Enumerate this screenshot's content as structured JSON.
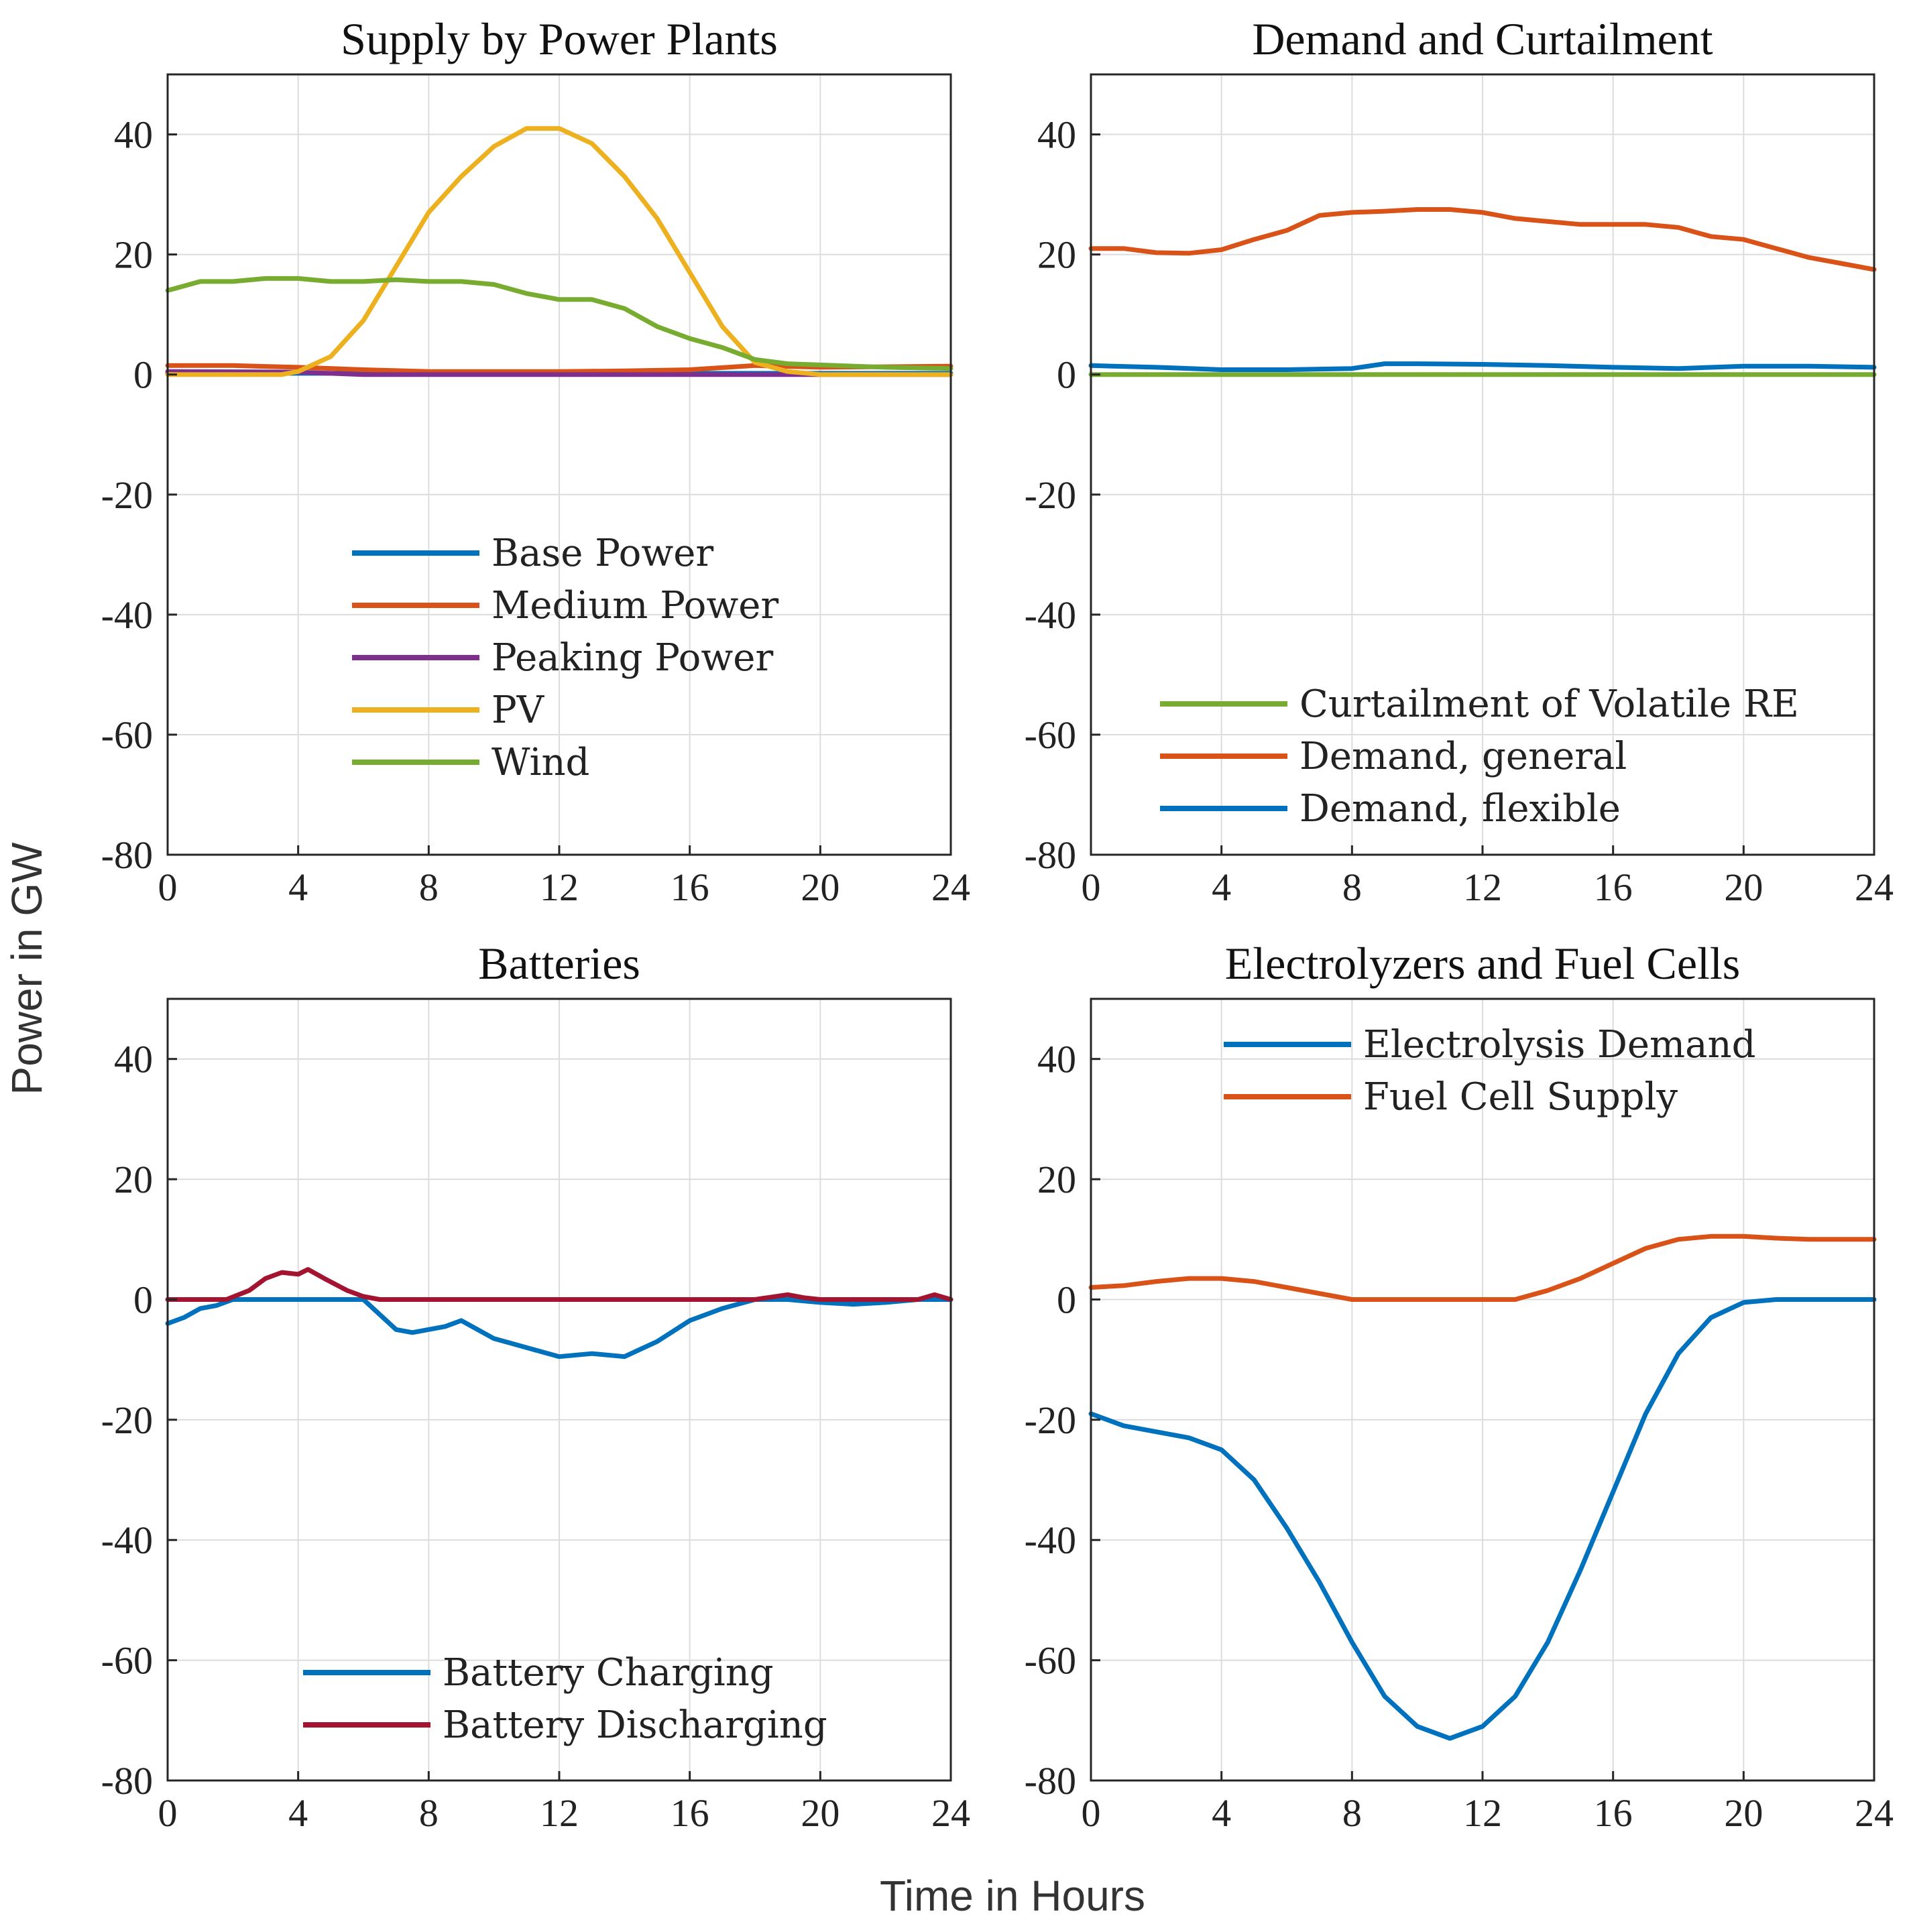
{
  "figure": {
    "ylabel": "Power in GW",
    "xlabel": "Time in Hours"
  },
  "colors": {
    "blue": "#0072BD",
    "orange": "#D95319",
    "purple": "#7E2F8E",
    "yellow": "#EDB120",
    "green": "#77AC30",
    "darkred": "#A2142F"
  },
  "chart_data": [
    {
      "type": "line",
      "title": "Supply by Power Plants",
      "xlim": [
        0,
        24
      ],
      "ylim": [
        -80,
        50
      ],
      "xticks": [
        0,
        4,
        8,
        12,
        16,
        20,
        24
      ],
      "yticks": [
        -80,
        -60,
        -40,
        -20,
        0,
        20,
        40
      ],
      "grid": true,
      "legend_location": "center",
      "series": [
        {
          "name": "Base Power",
          "color": "#0072BD",
          "x": [
            0,
            24
          ],
          "y": [
            0.2,
            0.2
          ]
        },
        {
          "name": "Medium Power",
          "color": "#D95319",
          "x": [
            0,
            2,
            4,
            6,
            8,
            10,
            12,
            14,
            16,
            18,
            20,
            22,
            24
          ],
          "y": [
            1.5,
            1.5,
            1.2,
            0.8,
            0.5,
            0.5,
            0.5,
            0.6,
            0.8,
            1.5,
            1.2,
            1.3,
            1.4
          ]
        },
        {
          "name": "Peaking Power",
          "color": "#7E2F8E",
          "x": [
            0,
            4,
            6,
            18,
            20,
            24
          ],
          "y": [
            0.5,
            0.4,
            0,
            0,
            0,
            0
          ]
        },
        {
          "name": "PV",
          "color": "#EDB120",
          "x": [
            0,
            3.5,
            4,
            5,
            6,
            7,
            8,
            9,
            10,
            11,
            12,
            13,
            14,
            15,
            16,
            17,
            18,
            19,
            20,
            24
          ],
          "y": [
            0,
            0,
            0.5,
            3,
            9,
            18,
            27,
            33,
            38,
            41,
            41,
            38.5,
            33,
            26,
            17,
            8,
            2,
            0.5,
            0,
            0
          ]
        },
        {
          "name": "Wind",
          "color": "#77AC30",
          "x": [
            0,
            1,
            2,
            3,
            4,
            5,
            6,
            7,
            8,
            9,
            10,
            11,
            12,
            13,
            14,
            15,
            16,
            17,
            18,
            19,
            20,
            22,
            24
          ],
          "y": [
            14,
            15.5,
            15.5,
            16,
            16,
            15.5,
            15.5,
            15.8,
            15.5,
            15.5,
            15,
            13.5,
            12.5,
            12.5,
            11,
            8,
            6,
            4.5,
            2.5,
            1.8,
            1.6,
            1.2,
            1
          ]
        }
      ]
    },
    {
      "type": "line",
      "title": "Demand and Curtailment",
      "xlim": [
        0,
        24
      ],
      "ylim": [
        -80,
        50
      ],
      "xticks": [
        0,
        4,
        8,
        12,
        16,
        20,
        24
      ],
      "yticks": [
        -80,
        -60,
        -40,
        -20,
        0,
        20,
        40
      ],
      "grid": true,
      "legend_location": "bottom",
      "series": [
        {
          "name": "Curtailment of Volatile RE",
          "color": "#77AC30",
          "x": [
            0,
            24
          ],
          "y": [
            0,
            0
          ]
        },
        {
          "name": "Demand, general",
          "color": "#D95319",
          "x": [
            0,
            1,
            2,
            3,
            4,
            5,
            6,
            7,
            8,
            9,
            10,
            11,
            12,
            13,
            14,
            15,
            16,
            17,
            18,
            19,
            20,
            21,
            22,
            23,
            24
          ],
          "y": [
            21,
            21,
            20.3,
            20.2,
            20.8,
            22.5,
            24,
            26.5,
            27,
            27.2,
            27.5,
            27.5,
            27,
            26,
            25.5,
            25,
            25,
            25,
            24.5,
            23,
            22.5,
            21,
            19.5,
            18.5,
            17.5
          ]
        },
        {
          "name": "Demand, flexible",
          "color": "#0072BD",
          "x": [
            0,
            2,
            4,
            6,
            8,
            9,
            10,
            12,
            14,
            16,
            18,
            20,
            22,
            24
          ],
          "y": [
            1.5,
            1.2,
            0.8,
            0.8,
            1,
            1.8,
            1.8,
            1.7,
            1.5,
            1.2,
            1,
            1.4,
            1.4,
            1.2
          ]
        }
      ]
    },
    {
      "type": "line",
      "title": "Batteries",
      "xlim": [
        0,
        24
      ],
      "ylim": [
        -80,
        50
      ],
      "xticks": [
        0,
        4,
        8,
        12,
        16,
        20,
        24
      ],
      "yticks": [
        -80,
        -60,
        -40,
        -20,
        0,
        20,
        40
      ],
      "grid": true,
      "legend_location": "bottom",
      "series": [
        {
          "name": "Battery Charging",
          "color": "#0072BD",
          "x": [
            0,
            0.5,
            1,
            1.5,
            2,
            3,
            4,
            5,
            6,
            7,
            7.5,
            8,
            8.5,
            9,
            10,
            11,
            12,
            13,
            14,
            15,
            16,
            17,
            18,
            19,
            20,
            21,
            22,
            23,
            24
          ],
          "y": [
            -4,
            -3,
            -1.5,
            -1,
            0,
            0,
            0,
            0,
            0,
            -5,
            -5.5,
            -5,
            -4.5,
            -3.5,
            -6.5,
            -8,
            -9.5,
            -9,
            -9.5,
            -7,
            -3.5,
            -1.5,
            0,
            0,
            -0.5,
            -0.8,
            -0.5,
            0,
            0
          ]
        },
        {
          "name": "Battery Discharging",
          "color": "#A2142F",
          "x": [
            0,
            1.8,
            2.5,
            3,
            3.5,
            4,
            4.3,
            4.8,
            5.5,
            6,
            6.5,
            18,
            19,
            19.5,
            20,
            23,
            23.5,
            24
          ],
          "y": [
            0,
            0,
            1.5,
            3.5,
            4.5,
            4.2,
            5,
            3.5,
            1.5,
            0.5,
            0,
            0,
            0.8,
            0.3,
            0,
            0,
            0.8,
            0
          ]
        }
      ]
    },
    {
      "type": "line",
      "title": "Electrolyzers and Fuel Cells",
      "xlim": [
        0,
        24
      ],
      "ylim": [
        -80,
        50
      ],
      "xticks": [
        0,
        4,
        8,
        12,
        16,
        20,
        24
      ],
      "yticks": [
        -80,
        -60,
        -40,
        -20,
        0,
        20,
        40
      ],
      "grid": true,
      "legend_location": "top",
      "series": [
        {
          "name": "Electrolysis Demand",
          "color": "#0072BD",
          "x": [
            0,
            1,
            2,
            3,
            4,
            5,
            6,
            7,
            8,
            9,
            10,
            11,
            12,
            13,
            14,
            15,
            16,
            17,
            18,
            19,
            20,
            21,
            22,
            24
          ],
          "y": [
            -19,
            -21,
            -22,
            -23,
            -25,
            -30,
            -38,
            -47,
            -57,
            -66,
            -71,
            -73,
            -71,
            -66,
            -57,
            -45,
            -32,
            -19,
            -9,
            -3,
            -0.5,
            0,
            0,
            0
          ]
        },
        {
          "name": "Fuel Cell Supply",
          "color": "#D95319",
          "x": [
            0,
            1,
            2,
            3,
            4,
            5,
            6,
            7,
            8,
            9,
            10,
            11,
            12,
            13,
            14,
            15,
            16,
            17,
            18,
            19,
            20,
            21,
            22,
            23,
            24
          ],
          "y": [
            2,
            2.3,
            3,
            3.5,
            3.5,
            3,
            2,
            1,
            0,
            0,
            0,
            0,
            0,
            0,
            1.5,
            3.5,
            6,
            8.5,
            10,
            10.5,
            10.5,
            10.2,
            10,
            10,
            10
          ]
        }
      ]
    }
  ]
}
